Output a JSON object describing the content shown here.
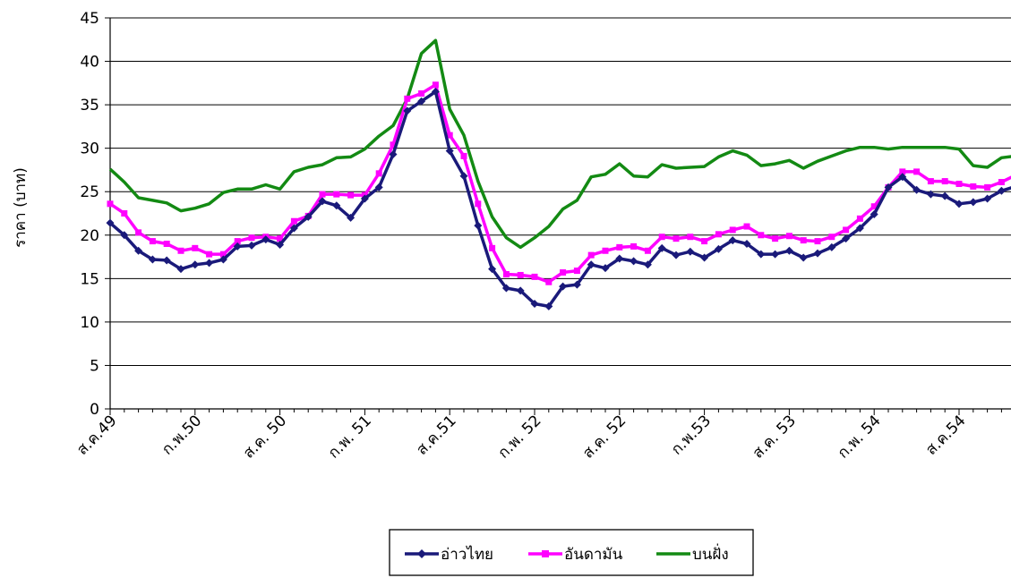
{
  "chart_data": {
    "type": "line",
    "ylabel": "ราคา (บาท)",
    "xlabel": "",
    "ylim": [
      0,
      45
    ],
    "y_ticks": [
      0,
      5,
      10,
      15,
      20,
      25,
      30,
      35,
      40,
      45
    ],
    "x_tick_labels": [
      "ส.ค.49",
      "ก.พ.50",
      "ส.ค. 50",
      "ก.พ. 51",
      "ส.ค.51",
      "ก.พ. 52",
      "ส.ค. 52",
      "ก.พ.53",
      "ส.ค. 53",
      "ก.พ. 54",
      "ส.ค.54"
    ],
    "points_per_tick": 6,
    "grid": "horizontal",
    "legend_position": "bottom",
    "series": [
      {
        "name": "อ่าวไทย",
        "color": "#1a1a7a",
        "marker": "diamond",
        "values": [
          21.4,
          20.0,
          18.2,
          17.2,
          17.1,
          16.1,
          16.6,
          16.8,
          17.2,
          18.7,
          18.8,
          19.5,
          18.9,
          20.8,
          22.1,
          23.9,
          23.4,
          22.0,
          24.2,
          25.5,
          29.3,
          34.3,
          35.4,
          36.5,
          29.7,
          26.8,
          21.1,
          16.1,
          13.9,
          13.6,
          12.1,
          11.8,
          14.1,
          14.3,
          16.6,
          16.2,
          17.3,
          17.0,
          16.6,
          18.5,
          17.7,
          18.1,
          17.4,
          18.4,
          19.4,
          19.0,
          17.8,
          17.8,
          18.2,
          17.4,
          17.9,
          18.6,
          19.6,
          20.8,
          22.4,
          25.5,
          26.7,
          25.2,
          24.7,
          24.5,
          23.6,
          23.8,
          24.2,
          25.1,
          25.6
        ]
      },
      {
        "name": "อันดามัน",
        "color": "#ff00ff",
        "marker": "square",
        "values": [
          23.6,
          22.5,
          20.3,
          19.3,
          19.0,
          18.2,
          18.5,
          17.8,
          17.8,
          19.3,
          19.7,
          19.8,
          19.6,
          21.6,
          22.2,
          24.7,
          24.7,
          24.6,
          24.6,
          27.1,
          30.4,
          35.7,
          36.3,
          37.3,
          31.5,
          29.1,
          23.6,
          18.5,
          15.5,
          15.4,
          15.2,
          14.6,
          15.7,
          15.9,
          17.7,
          18.2,
          18.6,
          18.7,
          18.2,
          19.8,
          19.6,
          19.8,
          19.3,
          20.1,
          20.6,
          21.0,
          20.0,
          19.6,
          19.9,
          19.4,
          19.3,
          19.8,
          20.6,
          21.9,
          23.3,
          25.5,
          27.3,
          27.3,
          26.2,
          26.2,
          25.9,
          25.6,
          25.5,
          26.1,
          26.9
        ]
      },
      {
        "name": "บนฝั่ง",
        "color": "#138a13",
        "marker": "none",
        "values": [
          27.6,
          26.1,
          24.3,
          24.0,
          23.7,
          22.8,
          23.1,
          23.6,
          24.9,
          25.3,
          25.3,
          25.8,
          25.3,
          27.3,
          27.8,
          28.1,
          28.9,
          29.0,
          29.9,
          31.4,
          32.6,
          35.7,
          40.9,
          42.4,
          34.5,
          31.5,
          26.2,
          22.1,
          19.7,
          18.6,
          19.7,
          21.0,
          23.0,
          24.0,
          26.7,
          27.0,
          28.2,
          26.8,
          26.7,
          28.1,
          27.7,
          27.8,
          27.9,
          29.0,
          29.7,
          29.2,
          28.0,
          28.2,
          28.6,
          27.7,
          28.5,
          29.1,
          29.7,
          30.1,
          30.1,
          29.9,
          30.1,
          30.1,
          30.1,
          30.1,
          29.9,
          28.0,
          27.8,
          28.9,
          29.1
        ]
      }
    ]
  }
}
